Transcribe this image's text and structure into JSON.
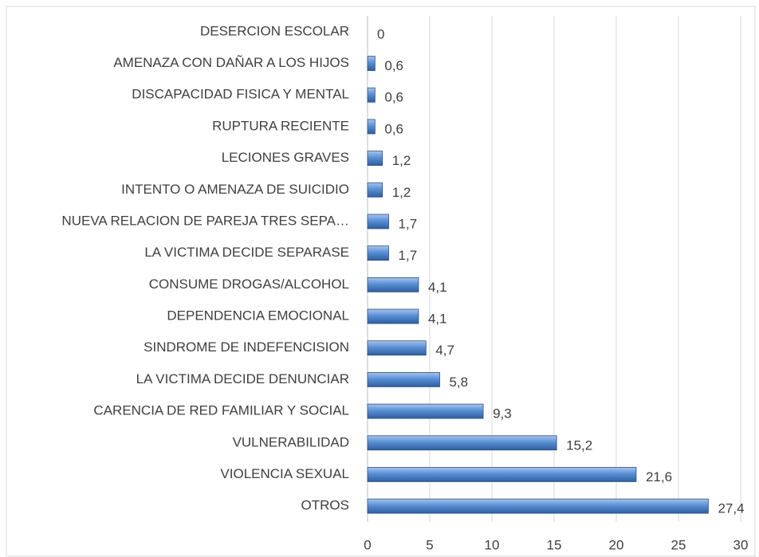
{
  "chart_data": {
    "type": "bar",
    "orientation": "horizontal",
    "categories": [
      "DESERCION ESCOLAR",
      "AMENAZA CON DAÑAR A LOS HIJOS",
      "DISCAPACIDAD FISICA Y MENTAL",
      "RUPTURA RECIENTE",
      "LECIONES GRAVES",
      "INTENTO O AMENAZA DE SUICIDIO",
      "NUEVA RELACION DE PAREJA TRES SEPA…",
      "LA VICTIMA DECIDE SEPARASE",
      "CONSUME DROGAS/ALCOHOL",
      "DEPENDENCIA EMOCIONAL",
      "SINDROME DE INDEFENCISION",
      "LA VICTIMA DECIDE DENUNCIAR",
      "CARENCIA DE RED FAMILIAR Y SOCIAL",
      "VULNERABILIDAD",
      "VIOLENCIA SEXUAL",
      "OTROS"
    ],
    "values": [
      0,
      0.6,
      0.6,
      0.6,
      1.2,
      1.2,
      1.7,
      1.7,
      4.1,
      4.1,
      4.7,
      5.8,
      9.3,
      15.2,
      21.6,
      27.4
    ],
    "value_labels": [
      "0",
      "0,6",
      "0,6",
      "0,6",
      "1,2",
      "1,2",
      "1,7",
      "1,7",
      "4,1",
      "4,1",
      "4,7",
      "5,8",
      "9,3",
      "15,2",
      "21,6",
      "27,4"
    ],
    "color": "#4f81bd",
    "xlim": [
      0,
      30
    ],
    "xticks": [
      0,
      5,
      10,
      15,
      20,
      25,
      30
    ],
    "grid": true
  }
}
